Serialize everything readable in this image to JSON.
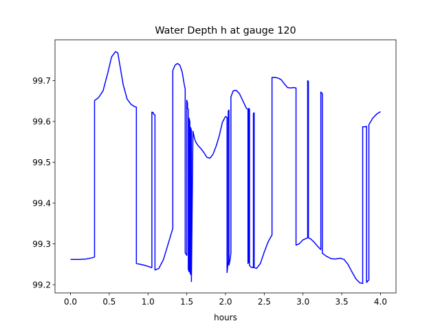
{
  "chart_data": {
    "type": "line",
    "title": "Water Depth h at gauge 120",
    "xlabel": "hours",
    "ylabel": "",
    "xlim": [
      -0.2,
      4.2
    ],
    "ylim": [
      99.18,
      99.8
    ],
    "xticks": [
      0.0,
      0.5,
      1.0,
      1.5,
      2.0,
      2.5,
      3.0,
      3.5,
      4.0
    ],
    "xtick_labels": [
      "0.0",
      "0.5",
      "1.0",
      "1.5",
      "2.0",
      "2.5",
      "3.0",
      "3.5",
      "4.0"
    ],
    "yticks": [
      99.2,
      99.3,
      99.4,
      99.5,
      99.6,
      99.7
    ],
    "ytick_labels": [
      "99.2",
      "99.3",
      "99.4",
      "99.5",
      "99.6",
      "99.7"
    ],
    "grid": false,
    "series": [
      {
        "color": "#0000ff",
        "x": [
          0.0,
          0.1,
          0.2,
          0.28,
          0.31,
          0.31,
          0.36,
          0.42,
          0.48,
          0.53,
          0.58,
          0.61,
          0.64,
          0.68,
          0.73,
          0.78,
          0.82,
          0.85,
          0.85,
          0.95,
          1.05,
          1.05,
          1.07,
          1.07,
          1.09,
          1.09,
          1.14,
          1.2,
          1.26,
          1.32,
          1.32,
          1.35,
          1.38,
          1.41,
          1.44,
          1.47,
          1.48,
          1.48,
          1.5,
          1.5,
          1.51,
          1.51,
          1.52,
          1.52,
          1.53,
          1.53,
          1.54,
          1.54,
          1.55,
          1.55,
          1.56,
          1.56,
          1.58,
          1.6,
          1.62,
          1.65,
          1.68,
          1.72,
          1.76,
          1.8,
          1.84,
          1.88,
          1.92,
          1.96,
          2.0,
          2.02,
          2.02,
          2.035,
          2.035,
          2.045,
          2.045,
          2.06,
          2.07,
          2.07,
          2.1,
          2.14,
          2.18,
          2.22,
          2.27,
          2.29,
          2.29,
          2.3,
          2.3,
          2.31,
          2.31,
          2.33,
          2.36,
          2.36,
          2.37,
          2.37,
          2.4,
          2.45,
          2.5,
          2.55,
          2.6,
          2.6,
          2.64,
          2.68,
          2.72,
          2.76,
          2.8,
          2.84,
          2.88,
          2.91,
          2.91,
          2.95,
          3.0,
          3.06,
          3.06,
          3.07,
          3.07,
          3.1,
          3.14,
          3.18,
          3.22,
          3.23,
          3.23,
          3.25,
          3.25,
          3.3,
          3.36,
          3.42,
          3.48,
          3.53,
          3.58,
          3.63,
          3.68,
          3.73,
          3.77,
          3.77,
          3.8,
          3.82,
          3.82,
          3.83,
          3.83,
          3.85,
          3.85,
          3.9,
          3.95,
          4.0
        ],
        "y": [
          99.262,
          99.262,
          99.263,
          99.266,
          99.268,
          99.651,
          99.658,
          99.675,
          99.718,
          99.758,
          99.771,
          99.768,
          99.735,
          99.69,
          99.655,
          99.642,
          99.637,
          99.635,
          99.252,
          99.248,
          99.242,
          99.623,
          99.621,
          99.618,
          99.616,
          99.236,
          99.24,
          99.262,
          99.3,
          99.338,
          99.725,
          99.738,
          99.742,
          99.738,
          99.722,
          99.688,
          99.68,
          99.278,
          99.272,
          99.652,
          99.645,
          99.632,
          99.63,
          99.238,
          99.232,
          99.608,
          99.6,
          99.232,
          99.225,
          99.585,
          99.578,
          99.208,
          99.576,
          99.558,
          99.548,
          99.54,
          99.534,
          99.524,
          99.512,
          99.51,
          99.52,
          99.54,
          99.565,
          99.598,
          99.612,
          99.61,
          99.23,
          99.258,
          99.625,
          99.628,
          99.248,
          99.262,
          99.278,
          99.66,
          99.675,
          99.676,
          99.668,
          99.652,
          99.632,
          99.63,
          99.252,
          99.256,
          99.632,
          99.63,
          99.247,
          99.243,
          99.242,
          99.62,
          99.621,
          99.242,
          99.24,
          99.252,
          99.28,
          99.305,
          99.322,
          99.708,
          99.708,
          99.706,
          99.702,
          99.692,
          99.683,
          99.682,
          99.683,
          99.682,
          99.297,
          99.3,
          99.31,
          99.315,
          99.7,
          99.698,
          99.315,
          99.312,
          99.305,
          99.296,
          99.288,
          99.286,
          99.672,
          99.668,
          99.277,
          99.27,
          99.264,
          99.263,
          99.265,
          99.262,
          99.25,
          99.232,
          99.215,
          99.205,
          99.203,
          99.587,
          99.587,
          99.588,
          99.206,
          99.207,
          99.209,
          99.211,
          99.592,
          99.608,
          99.618,
          99.624
        ]
      }
    ]
  }
}
